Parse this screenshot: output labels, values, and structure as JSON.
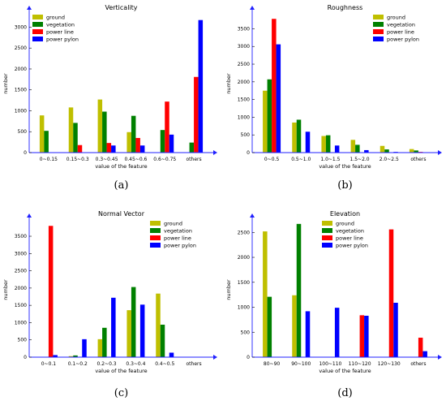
{
  "colors": {
    "ground": "#bfbf00",
    "vegetation": "#008000",
    "power line": "#ff0000",
    "power pylon": "#0000ff"
  },
  "chart_data": [
    {
      "type": "bar",
      "title": "Verticality",
      "panel_label": "(a)",
      "xlabel": "value of the feature",
      "ylabel": "number",
      "categories": [
        "0~0.15",
        "0.15~0.3",
        "0.3~0.45",
        "0.45~0.6",
        "0.6~0.75",
        "others"
      ],
      "ylim": [
        0,
        3300
      ],
      "yticks": [
        0,
        500,
        1000,
        1500,
        2000,
        2500,
        3000
      ],
      "legend": "top-left",
      "series": [
        {
          "name": "ground",
          "values": [
            890,
            1080,
            1270,
            490,
            0,
            0
          ]
        },
        {
          "name": "vegetation",
          "values": [
            520,
            710,
            980,
            880,
            540,
            240
          ]
        },
        {
          "name": "power line",
          "values": [
            0,
            180,
            230,
            350,
            1220,
            1810
          ]
        },
        {
          "name": "power pylon",
          "values": [
            0,
            0,
            170,
            170,
            430,
            3170
          ]
        }
      ]
    },
    {
      "type": "bar",
      "title": "Roughness",
      "panel_label": "(b)",
      "xlabel": "value of the feature",
      "ylabel": "number",
      "categories": [
        "0~0.5",
        "0.5~1.0",
        "1.0~1.5",
        "1.5~2.0",
        "2.0~2.5",
        "others"
      ],
      "ylim": [
        0,
        3900
      ],
      "yticks": [
        0,
        500,
        1000,
        1500,
        2000,
        2500,
        3000,
        3500
      ],
      "legend": "top-right",
      "series": [
        {
          "name": "ground",
          "values": [
            1750,
            850,
            470,
            360,
            190,
            100
          ]
        },
        {
          "name": "vegetation",
          "values": [
            2070,
            930,
            490,
            220,
            90,
            60
          ]
        },
        {
          "name": "power line",
          "values": [
            3780,
            0,
            0,
            0,
            0,
            20
          ]
        },
        {
          "name": "power pylon",
          "values": [
            3060,
            590,
            200,
            70,
            20,
            10
          ]
        }
      ]
    },
    {
      "type": "bar",
      "title": "Normal Vector",
      "panel_label": "(c)",
      "xlabel": "value of the feature",
      "ylabel": "number",
      "categories": [
        "0~0.1",
        "0.1~0.2",
        "0.2~0.3",
        "0.3~0.4",
        "0.4~0.5",
        "others"
      ],
      "ylim": [
        0,
        3900
      ],
      "yticks": [
        0,
        500,
        1000,
        1500,
        2000,
        2500,
        3000,
        3500
      ],
      "legend": "top-right",
      "series": [
        {
          "name": "ground",
          "values": [
            0,
            30,
            520,
            1360,
            1840,
            0
          ]
        },
        {
          "name": "vegetation",
          "values": [
            0,
            50,
            850,
            2030,
            940,
            0
          ]
        },
        {
          "name": "power line",
          "values": [
            3800,
            0,
            0,
            0,
            0,
            0
          ]
        },
        {
          "name": "power pylon",
          "values": [
            60,
            520,
            1720,
            1520,
            130,
            0
          ]
        }
      ]
    },
    {
      "type": "bar",
      "title": "Elevation",
      "panel_label": "(d)",
      "xlabel": "value of the feature",
      "ylabel": "number",
      "categories": [
        "80~90",
        "90~100",
        "100~110",
        "110~120",
        "120~130",
        "others"
      ],
      "ylim": [
        0,
        2700
      ],
      "yticks": [
        0,
        500,
        1000,
        1500,
        2000,
        2500
      ],
      "legend": "top-center",
      "series": [
        {
          "name": "ground",
          "values": [
            2520,
            1240,
            0,
            0,
            0,
            0
          ]
        },
        {
          "name": "vegetation",
          "values": [
            1210,
            2670,
            0,
            0,
            0,
            0
          ]
        },
        {
          "name": "power line",
          "values": [
            0,
            0,
            0,
            840,
            2560,
            390
          ]
        },
        {
          "name": "power pylon",
          "values": [
            0,
            920,
            990,
            830,
            1090,
            120
          ]
        }
      ]
    }
  ]
}
